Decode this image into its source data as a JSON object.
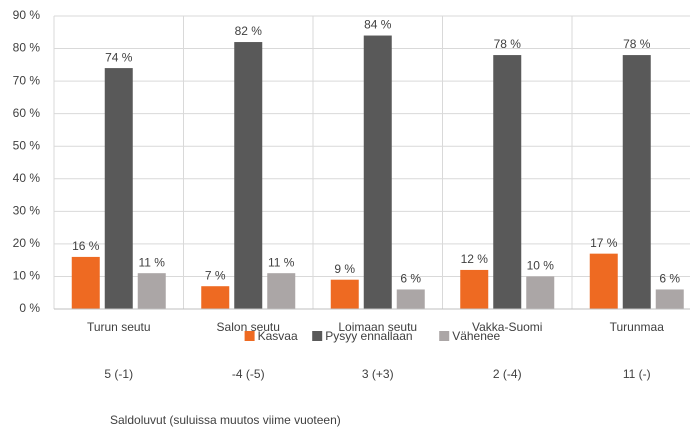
{
  "chart_data": {
    "type": "bar",
    "categories": [
      "Turun seutu",
      "Salon seutu",
      "Loimaan seutu",
      "Vakka-Suomi",
      "Turunmaa"
    ],
    "series": [
      {
        "name": "Kasvaa",
        "color": "#ee6a22",
        "values": [
          16,
          7,
          9,
          12,
          17
        ],
        "value_labels": [
          "16 %",
          "7 %",
          "9 %",
          "12 %",
          "17 %"
        ]
      },
      {
        "name": "Pysyy ennallaan",
        "color": "#595959",
        "values": [
          74,
          82,
          84,
          78,
          78
        ],
        "value_labels": [
          "74 %",
          "82 %",
          "84 %",
          "78 %",
          "78 %"
        ]
      },
      {
        "name": "Vähenee",
        "color": "#aba6a6",
        "values": [
          11,
          11,
          6,
          10,
          6
        ],
        "value_labels": [
          "11 %",
          "11 %",
          "6 %",
          "10 %",
          "6 %"
        ]
      }
    ],
    "ylim": [
      0,
      90
    ],
    "yticks": [
      {
        "value": 0,
        "label": "0 %"
      },
      {
        "value": 10,
        "label": "10 %"
      },
      {
        "value": 20,
        "label": "20 %"
      },
      {
        "value": 30,
        "label": "30 %"
      },
      {
        "value": 40,
        "label": "40 %"
      },
      {
        "value": 50,
        "label": "50 %"
      },
      {
        "value": 60,
        "label": "60 %"
      },
      {
        "value": 70,
        "label": "70 %"
      },
      {
        "value": 80,
        "label": "80 %"
      },
      {
        "value": 90,
        "label": "90 %"
      }
    ],
    "grid": true,
    "legend": "bottom",
    "saldo": [
      "5 (-1)",
      "-4 (-5)",
      "3 (+3)",
      "2 (-4)",
      "11 (-)"
    ],
    "note": "Saldoluvut (suluissa muutos viime vuoteen)"
  }
}
